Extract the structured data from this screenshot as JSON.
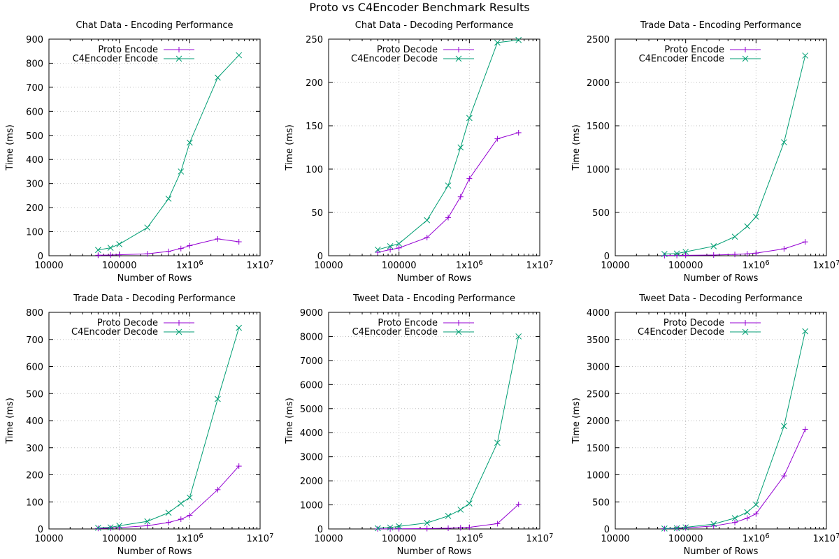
{
  "figure_title": "Proto vs C4Encoder Benchmark Results",
  "colors": {
    "proto": "#9400d3",
    "c4": "#009e73"
  },
  "chart_data": [
    {
      "type": "line",
      "title": "Chat Data - Encoding Performance",
      "xlabel": "Number of Rows",
      "ylabel": "Time (ms)",
      "xscale": "log",
      "xlim": [
        10000,
        10000000
      ],
      "ylim": [
        0,
        900
      ],
      "xticks": [
        "10000",
        "100000",
        "1x10^6",
        "1x10^7"
      ],
      "yticks": [
        0,
        100,
        200,
        300,
        400,
        500,
        600,
        700,
        800,
        900
      ],
      "legend": "top-left",
      "series": [
        {
          "name": "Proto Encode",
          "color": "#9400d3",
          "marker": "plus",
          "x": [
            50000,
            75000,
            100000,
            250000,
            500000,
            750000,
            1000000,
            2500000,
            5000000
          ],
          "y": [
            2,
            3,
            4,
            8,
            18,
            30,
            42,
            70,
            58
          ]
        },
        {
          "name": "C4Encoder Encode",
          "color": "#009e73",
          "marker": "cross",
          "x": [
            50000,
            75000,
            100000,
            250000,
            500000,
            750000,
            1000000,
            2500000,
            5000000
          ],
          "y": [
            24,
            33,
            48,
            117,
            237,
            350,
            470,
            740,
            833
          ]
        }
      ]
    },
    {
      "type": "line",
      "title": "Chat Data - Decoding Performance",
      "xlabel": "Number of Rows",
      "ylabel": "Time (ms)",
      "xscale": "log",
      "xlim": [
        10000,
        10000000
      ],
      "ylim": [
        0,
        250
      ],
      "xticks": [
        "10000",
        "100000",
        "1x10^6",
        "1x10^7"
      ],
      "yticks": [
        0,
        50,
        100,
        150,
        200,
        250
      ],
      "legend": "top-left",
      "series": [
        {
          "name": "Proto Decode",
          "color": "#9400d3",
          "marker": "plus",
          "x": [
            50000,
            75000,
            100000,
            250000,
            500000,
            750000,
            1000000,
            2500000,
            5000000
          ],
          "y": [
            4,
            7,
            9,
            21,
            44,
            68,
            89,
            135,
            142
          ]
        },
        {
          "name": "C4Encoder Decode",
          "color": "#009e73",
          "marker": "cross",
          "x": [
            50000,
            75000,
            100000,
            250000,
            500000,
            750000,
            1000000,
            2500000,
            5000000
          ],
          "y": [
            7,
            11,
            14,
            41,
            81,
            125,
            159,
            246,
            249
          ]
        }
      ]
    },
    {
      "type": "line",
      "title": "Trade Data - Encoding Performance",
      "xlabel": "Number of Rows",
      "ylabel": "Time (ms)",
      "xscale": "log",
      "xlim": [
        10000,
        10000000
      ],
      "ylim": [
        0,
        2500
      ],
      "xticks": [
        "10000",
        "100000",
        "1x10^6",
        "1x10^7"
      ],
      "yticks": [
        0,
        500,
        1000,
        1500,
        2000,
        2500
      ],
      "legend": "top-left",
      "series": [
        {
          "name": "Proto Encode",
          "color": "#9400d3",
          "marker": "plus",
          "x": [
            50000,
            75000,
            100000,
            250000,
            500000,
            750000,
            1000000,
            2500000,
            5000000
          ],
          "y": [
            2,
            3,
            5,
            8,
            15,
            22,
            30,
            80,
            160
          ]
        },
        {
          "name": "C4Encoder Encode",
          "color": "#009e73",
          "marker": "cross",
          "x": [
            50000,
            75000,
            100000,
            250000,
            500000,
            750000,
            1000000,
            2500000,
            5000000
          ],
          "y": [
            20,
            25,
            45,
            110,
            220,
            340,
            450,
            1310,
            2310
          ]
        }
      ]
    },
    {
      "type": "line",
      "title": "Trade Data - Decoding Performance",
      "xlabel": "Number of Rows",
      "ylabel": "Time (ms)",
      "xscale": "log",
      "xlim": [
        10000,
        10000000
      ],
      "ylim": [
        0,
        800
      ],
      "xticks": [
        "10000",
        "100000",
        "1x10^6",
        "1x10^7"
      ],
      "yticks": [
        0,
        100,
        200,
        300,
        400,
        500,
        600,
        700,
        800
      ],
      "legend": "top-left",
      "series": [
        {
          "name": "Proto Decode",
          "color": "#9400d3",
          "marker": "plus",
          "x": [
            50000,
            75000,
            100000,
            250000,
            500000,
            750000,
            1000000,
            2500000,
            5000000
          ],
          "y": [
            2,
            3,
            5,
            12,
            24,
            36,
            50,
            145,
            232
          ]
        },
        {
          "name": "C4Encoder Decode",
          "color": "#009e73",
          "marker": "cross",
          "x": [
            50000,
            75000,
            100000,
            250000,
            500000,
            750000,
            1000000,
            2500000,
            5000000
          ],
          "y": [
            4,
            6,
            12,
            28,
            60,
            94,
            116,
            480,
            743
          ]
        }
      ]
    },
    {
      "type": "line",
      "title": "Tweet Data - Encoding Performance",
      "xlabel": "Number of Rows",
      "ylabel": "Time (ms)",
      "xscale": "log",
      "xlim": [
        10000,
        10000000
      ],
      "ylim": [
        0,
        9000
      ],
      "xticks": [
        "10000",
        "100000",
        "1x10^6",
        "1x10^7"
      ],
      "yticks": [
        0,
        1000,
        2000,
        3000,
        4000,
        5000,
        6000,
        7000,
        8000,
        9000
      ],
      "legend": "top-left",
      "series": [
        {
          "name": "Proto Encode",
          "color": "#9400d3",
          "marker": "plus",
          "x": [
            50000,
            75000,
            100000,
            250000,
            500000,
            750000,
            1000000,
            2500000,
            5000000
          ],
          "y": [
            3,
            5,
            8,
            15,
            30,
            50,
            70,
            220,
            1020
          ]
        },
        {
          "name": "C4Encoder Encode",
          "color": "#009e73",
          "marker": "cross",
          "x": [
            50000,
            75000,
            100000,
            250000,
            500000,
            750000,
            1000000,
            2500000,
            5000000
          ],
          "y": [
            30,
            60,
            110,
            250,
            540,
            800,
            1060,
            3580,
            8000
          ]
        }
      ]
    },
    {
      "type": "line",
      "title": "Tweet Data - Decoding Performance",
      "xlabel": "Number of Rows",
      "ylabel": "Time (ms)",
      "xscale": "log",
      "xlim": [
        10000,
        10000000
      ],
      "ylim": [
        0,
        4000
      ],
      "xticks": [
        "10000",
        "100000",
        "1x10^6",
        "1x10^7"
      ],
      "yticks": [
        0,
        500,
        1000,
        1500,
        2000,
        2500,
        3000,
        3500,
        4000
      ],
      "legend": "top-left",
      "series": [
        {
          "name": "Proto Decode",
          "color": "#9400d3",
          "marker": "plus",
          "x": [
            50000,
            75000,
            100000,
            250000,
            500000,
            750000,
            1000000,
            2500000,
            5000000
          ],
          "y": [
            5,
            10,
            20,
            55,
            120,
            200,
            280,
            980,
            1840
          ]
        },
        {
          "name": "C4Encoder Decode",
          "color": "#009e73",
          "marker": "cross",
          "x": [
            50000,
            75000,
            100000,
            250000,
            500000,
            750000,
            1000000,
            2500000,
            5000000
          ],
          "y": [
            8,
            15,
            30,
            90,
            200,
            310,
            450,
            1900,
            3650
          ]
        }
      ]
    }
  ]
}
